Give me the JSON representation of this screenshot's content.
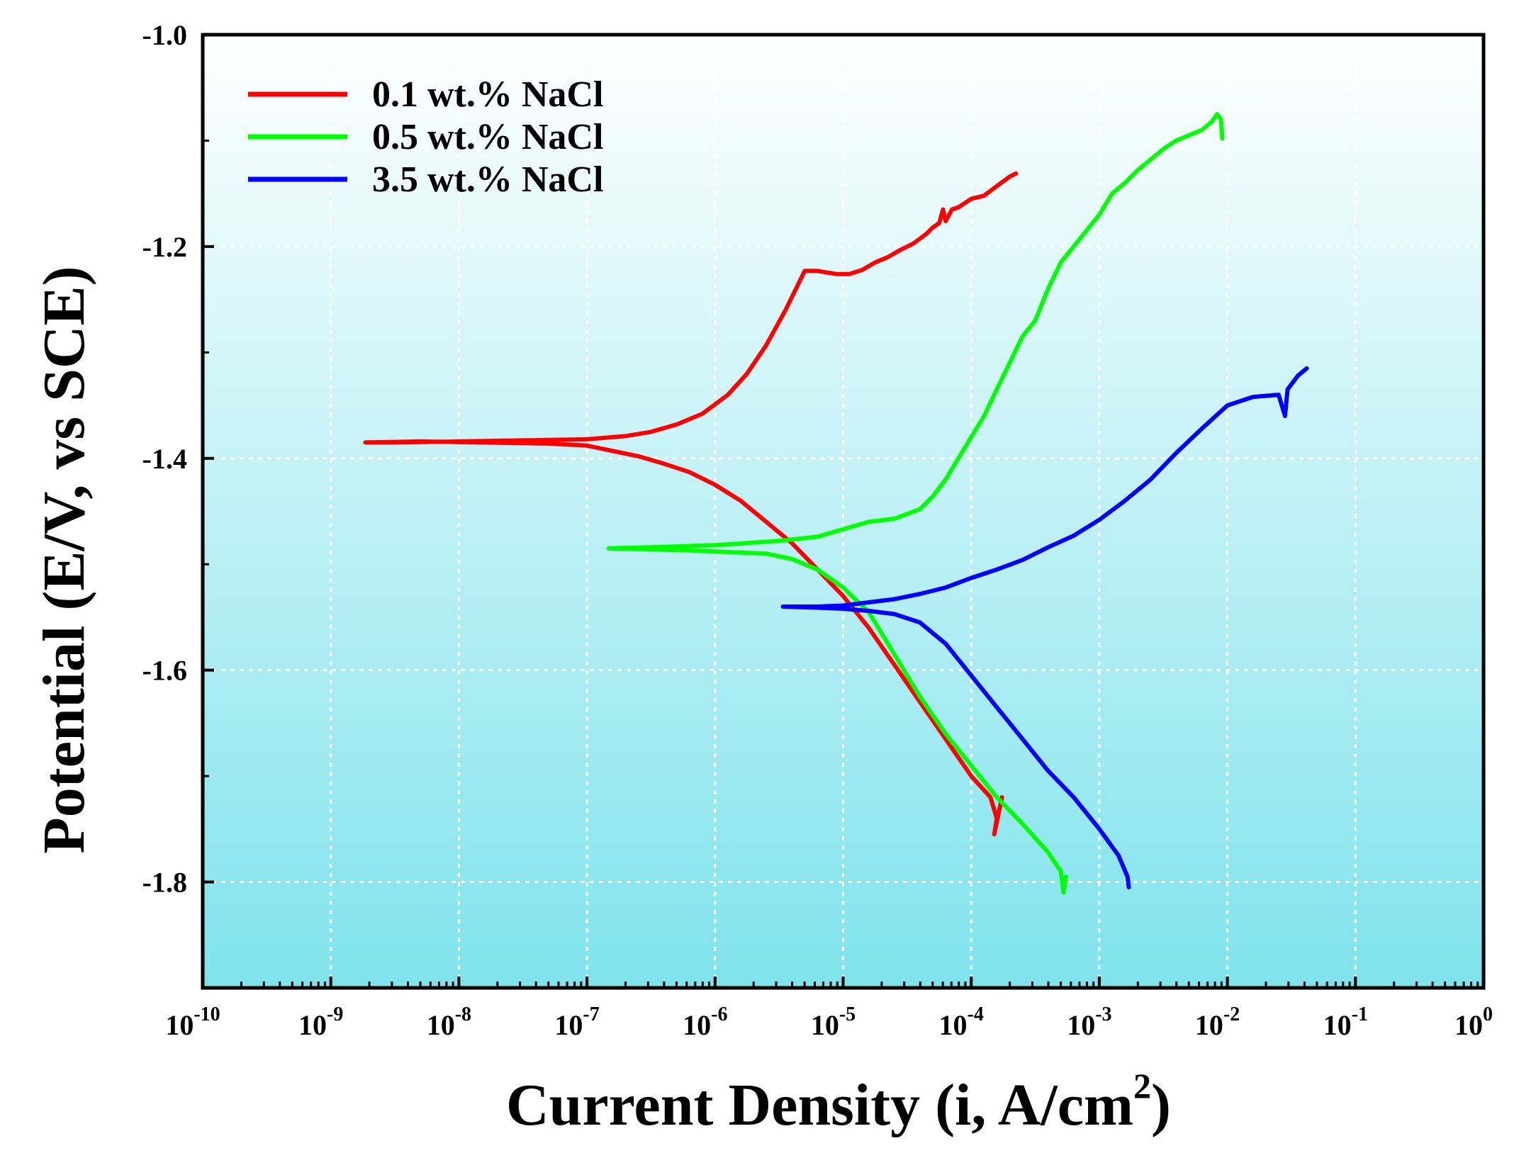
{
  "chart_data": {
    "type": "line",
    "title": "",
    "xlabel": "Current Density (i, A/cm",
    "xlabel_sup": "2",
    "xlabel_end": ")",
    "ylabel": "Potential (E/V, vs SCE)",
    "xscale": "log",
    "xlim_exp": [
      -10,
      0
    ],
    "ylim": [
      -1.9,
      -1.0
    ],
    "xticks": [
      {
        "base": "10",
        "exp": "-10",
        "value": -10
      },
      {
        "base": "10",
        "exp": "-9",
        "value": -9
      },
      {
        "base": "10",
        "exp": "-8",
        "value": -8
      },
      {
        "base": "10",
        "exp": "-7",
        "value": -7
      },
      {
        "base": "10",
        "exp": "-6",
        "value": -6
      },
      {
        "base": "10",
        "exp": "-5",
        "value": -5
      },
      {
        "base": "10",
        "exp": "-4",
        "value": -4
      },
      {
        "base": "10",
        "exp": "-3",
        "value": -3
      },
      {
        "base": "10",
        "exp": "-2",
        "value": -2
      },
      {
        "base": "10",
        "exp": "-1",
        "value": -1
      },
      {
        "base": "10",
        "exp": "0",
        "value": 0
      }
    ],
    "yticks": [
      {
        "label": "-1.0",
        "value": -1.0
      },
      {
        "label": "-1.2",
        "value": -1.2
      },
      {
        "label": "-1.4",
        "value": -1.4
      },
      {
        "label": "-1.6",
        "value": -1.6
      },
      {
        "label": "-1.8",
        "value": -1.8
      }
    ],
    "grid": true,
    "legend_position": "top-left",
    "background_gradient": [
      "#ffffff",
      "#7fe3ec"
    ],
    "series": [
      {
        "name": "0.1 wt.% NaCl",
        "color": "#ff0000",
        "branches": [
          {
            "log_i": [
              -8.73,
              -8.5,
              -8.0,
              -7.5,
              -7.0,
              -6.7,
              -6.5,
              -6.3,
              -6.1,
              -5.9,
              -5.75,
              -5.6,
              -5.45,
              -5.3,
              -5.2,
              -5.1,
              -5.05,
              -4.95,
              -4.85,
              -4.75,
              -4.65,
              -4.55,
              -4.45,
              -4.35,
              -4.3,
              -4.25,
              -4.22,
              -4.2,
              -4.15,
              -4.1,
              -4.0,
              -3.9,
              -3.8,
              -3.7,
              -3.65
            ],
            "E": [
              -1.385,
              -1.385,
              -1.384,
              -1.383,
              -1.382,
              -1.379,
              -1.375,
              -1.368,
              -1.358,
              -1.34,
              -1.32,
              -1.293,
              -1.26,
              -1.223,
              -1.223,
              -1.225,
              -1.226,
              -1.226,
              -1.222,
              -1.215,
              -1.21,
              -1.203,
              -1.197,
              -1.188,
              -1.182,
              -1.178,
              -1.165,
              -1.176,
              -1.165,
              -1.163,
              -1.155,
              -1.152,
              -1.143,
              -1.134,
              -1.131
            ]
          },
          {
            "log_i": [
              -8.73,
              -8.3,
              -7.8,
              -7.3,
              -7.0,
              -6.8,
              -6.6,
              -6.4,
              -6.2,
              -6.0,
              -5.8,
              -5.6,
              -5.4,
              -5.2,
              -5.0,
              -4.8,
              -4.6,
              -4.4,
              -4.2,
              -4.0,
              -3.85,
              -3.8,
              -3.82,
              -3.76
            ],
            "E": [
              -1.385,
              -1.384,
              -1.385,
              -1.386,
              -1.388,
              -1.393,
              -1.398,
              -1.405,
              -1.413,
              -1.425,
              -1.44,
              -1.46,
              -1.48,
              -1.505,
              -1.53,
              -1.56,
              -1.595,
              -1.63,
              -1.665,
              -1.7,
              -1.72,
              -1.74,
              -1.755,
              -1.72
            ]
          }
        ]
      },
      {
        "name": "0.5 wt.% NaCl",
        "color": "#00ff00",
        "branches": [
          {
            "log_i": [
              -6.83,
              -6.5,
              -6.0,
              -5.5,
              -5.2,
              -5.0,
              -4.8,
              -4.6,
              -4.4,
              -4.3,
              -4.2,
              -4.1,
              -4.0,
              -3.9,
              -3.8,
              -3.7,
              -3.6,
              -3.5,
              -3.4,
              -3.3,
              -3.2,
              -3.1,
              -3.0,
              -2.9,
              -2.8,
              -2.7,
              -2.6,
              -2.5,
              -2.4,
              -2.3,
              -2.2,
              -2.12,
              -2.08,
              -2.05,
              -2.04
            ],
            "E": [
              -1.485,
              -1.484,
              -1.482,
              -1.478,
              -1.474,
              -1.467,
              -1.46,
              -1.457,
              -1.448,
              -1.436,
              -1.42,
              -1.4,
              -1.38,
              -1.36,
              -1.335,
              -1.31,
              -1.285,
              -1.27,
              -1.24,
              -1.215,
              -1.2,
              -1.185,
              -1.17,
              -1.15,
              -1.14,
              -1.128,
              -1.118,
              -1.108,
              -1.1,
              -1.095,
              -1.09,
              -1.082,
              -1.075,
              -1.08,
              -1.098
            ]
          },
          {
            "log_i": [
              -6.83,
              -6.5,
              -6.2,
              -6.0,
              -5.8,
              -5.6,
              -5.4,
              -5.2,
              -5.0,
              -4.8,
              -4.6,
              -4.4,
              -4.2,
              -4.0,
              -3.8,
              -3.6,
              -3.4,
              -3.3,
              -3.28,
              -3.26
            ],
            "E": [
              -1.485,
              -1.486,
              -1.487,
              -1.488,
              -1.489,
              -1.49,
              -1.495,
              -1.505,
              -1.522,
              -1.545,
              -1.585,
              -1.625,
              -1.66,
              -1.69,
              -1.72,
              -1.745,
              -1.772,
              -1.79,
              -1.81,
              -1.795
            ]
          }
        ]
      },
      {
        "name": "3.5 wt.% NaCl",
        "color": "#0000ff",
        "branches": [
          {
            "log_i": [
              -5.47,
              -5.2,
              -5.0,
              -4.8,
              -4.6,
              -4.4,
              -4.2,
              -4.0,
              -3.8,
              -3.6,
              -3.4,
              -3.2,
              -3.0,
              -2.8,
              -2.6,
              -2.4,
              -2.2,
              -2.0,
              -1.8,
              -1.6,
              -1.55,
              -1.53,
              -1.5,
              -1.45,
              -1.38
            ],
            "E": [
              -1.54,
              -1.54,
              -1.539,
              -1.536,
              -1.533,
              -1.528,
              -1.522,
              -1.513,
              -1.505,
              -1.496,
              -1.484,
              -1.473,
              -1.458,
              -1.44,
              -1.42,
              -1.395,
              -1.372,
              -1.35,
              -1.342,
              -1.34,
              -1.36,
              -1.335,
              -1.33,
              -1.322,
              -1.315
            ]
          },
          {
            "log_i": [
              -5.47,
              -5.2,
              -5.0,
              -4.8,
              -4.6,
              -4.4,
              -4.2,
              -4.0,
              -3.8,
              -3.6,
              -3.4,
              -3.2,
              -3.0,
              -2.85,
              -2.78,
              -2.77
            ],
            "E": [
              -1.54,
              -1.541,
              -1.542,
              -1.544,
              -1.547,
              -1.555,
              -1.575,
              -1.605,
              -1.635,
              -1.665,
              -1.695,
              -1.72,
              -1.75,
              -1.775,
              -1.795,
              -1.805
            ]
          }
        ]
      }
    ]
  }
}
